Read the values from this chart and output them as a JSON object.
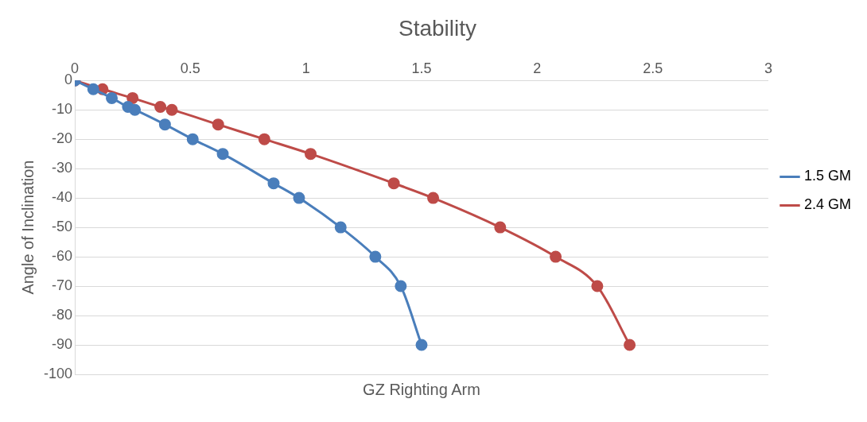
{
  "chart_data": {
    "type": "line",
    "title": "Stability",
    "xlabel": "GZ Righting Arm",
    "ylabel": "Angle of Inclination",
    "xlim": [
      0,
      3
    ],
    "xticks": [
      0,
      0.5,
      1,
      1.5,
      2,
      2.5,
      3
    ],
    "ylim": [
      -100,
      0
    ],
    "yticks": [
      -100,
      -90,
      -80,
      -70,
      -60,
      -50,
      -40,
      -30,
      -20,
      -10,
      0
    ],
    "grid": "y",
    "legend": "right",
    "marker": "circle",
    "line_style": "solid",
    "series": [
      {
        "name": "1.5 GM",
        "color": "#4a7ebb",
        "x": [
          0,
          0.08,
          0.16,
          0.23,
          0.26,
          0.39,
          0.51,
          0.64,
          0.86,
          0.97,
          1.15,
          1.3,
          1.41,
          1.5
        ],
        "values": [
          0,
          -3,
          -6,
          -9,
          -10,
          -15,
          -20,
          -25,
          -35,
          -40,
          -50,
          -60,
          -70,
          -90
        ]
      },
      {
        "name": "2.4 GM",
        "color": "#be4b48",
        "x": [
          0,
          0.12,
          0.25,
          0.37,
          0.42,
          0.62,
          0.82,
          1.02,
          1.38,
          1.55,
          1.84,
          2.08,
          2.26,
          2.4
        ],
        "values": [
          0,
          -3,
          -6,
          -9,
          -10,
          -15,
          -20,
          -25,
          -35,
          -40,
          -50,
          -60,
          -70,
          -90
        ]
      }
    ]
  }
}
